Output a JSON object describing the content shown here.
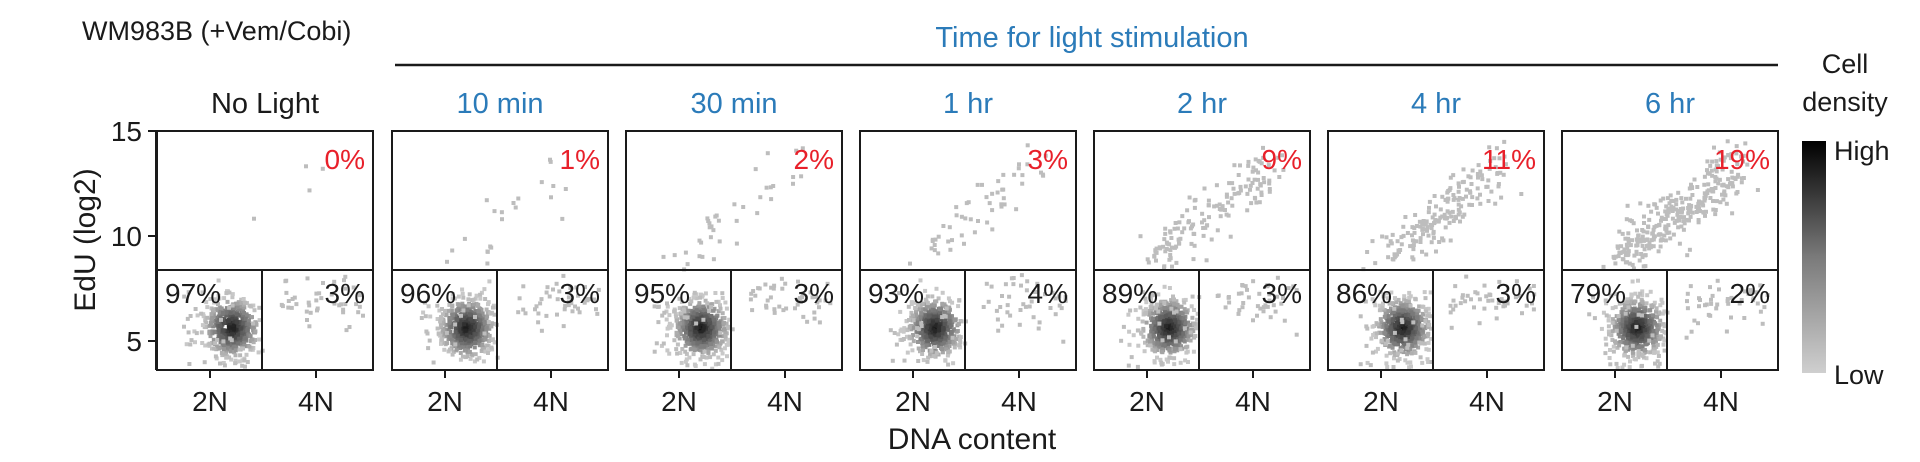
{
  "figure": {
    "cell_line_label": "WM983B (+Vem/Cobi)",
    "time_header": "Time for light stimulation",
    "ylabel": "EdU (log2)",
    "xlabel": "DNA content",
    "y_ticks": [
      "15",
      "10",
      "5"
    ],
    "x_ticks": [
      "2N",
      "4N"
    ]
  },
  "colors": {
    "title_no_light": "#1a1a1a",
    "title_time": "#2b7bb9",
    "top_percent": "#e8202a",
    "quadrant_text": "#1a1a1a",
    "dot_light": "#bdbdbd",
    "dot_dark": "#111111"
  },
  "legend": {
    "title_line1": "Cell",
    "title_line2": "density",
    "high": "High",
    "low": "Low"
  },
  "chart_data": {
    "type": "scatter",
    "subtype": "density-scatter panels (flow cytometry)",
    "xlabel": "DNA content",
    "ylabel": "EdU (log2)",
    "ylim": [
      3.5,
      15
    ],
    "y_ticks": [
      5,
      10,
      15
    ],
    "x_categories": [
      "2N",
      "4N"
    ],
    "panels": [
      {
        "title": "No Light",
        "top_pct": "0%",
        "bottom_left_pct": "97%",
        "bottom_right_pct": "3%",
        "top_fraction": 0.0
      },
      {
        "title": "10 min",
        "top_pct": "1%",
        "bottom_left_pct": "96%",
        "bottom_right_pct": "3%",
        "top_fraction": 0.01
      },
      {
        "title": "30 min",
        "top_pct": "2%",
        "bottom_left_pct": "95%",
        "bottom_right_pct": "3%",
        "top_fraction": 0.02
      },
      {
        "title": "1 hr",
        "top_pct": "3%",
        "bottom_left_pct": "93%",
        "bottom_right_pct": "4%",
        "top_fraction": 0.03
      },
      {
        "title": "2 hr",
        "top_pct": "9%",
        "bottom_left_pct": "89%",
        "bottom_right_pct": "3%",
        "top_fraction": 0.09
      },
      {
        "title": "4 hr",
        "top_pct": "11%",
        "bottom_left_pct": "86%",
        "bottom_right_pct": "3%",
        "top_fraction": 0.11
      },
      {
        "title": "6 hr",
        "top_pct": "19%",
        "bottom_left_pct": "79%",
        "bottom_right_pct": "2%",
        "top_fraction": 0.19
      }
    ]
  }
}
